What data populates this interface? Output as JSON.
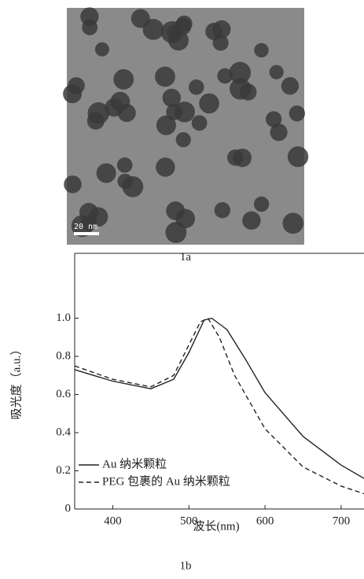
{
  "panel_a": {
    "scale_bar": "20 nm",
    "caption": "1a"
  },
  "chart_data": {
    "type": "line",
    "caption": "1b",
    "x_label": "波长(nm)",
    "y_label": "吸光度（a.u.）",
    "xlim": [
      350,
      730
    ],
    "ylim": [
      0,
      1.34
    ],
    "xticks": [
      400,
      500,
      600,
      700
    ],
    "yticks": [
      0,
      0.2,
      0.4,
      0.6,
      0.8,
      {
        "value": 1,
        "label": "1.0"
      }
    ],
    "series": [
      {
        "name": "Au 纳米颗粒",
        "color": "#222222",
        "dash": "solid",
        "x": [
          350,
          400,
          450,
          480,
          500,
          520,
          530,
          550,
          575,
          600,
          650,
          700,
          730
        ],
        "values": [
          0.73,
          0.67,
          0.63,
          0.68,
          0.82,
          0.99,
          1.0,
          0.94,
          0.78,
          0.61,
          0.38,
          0.23,
          0.16
        ]
      },
      {
        "name": "PEG 包裹的 Au 纳米颗粒",
        "color": "#222222",
        "dash": "dashed",
        "x": [
          350,
          400,
          450,
          480,
          500,
          515,
          525,
          540,
          560,
          600,
          650,
          700,
          730
        ],
        "values": [
          0.75,
          0.68,
          0.64,
          0.7,
          0.86,
          0.98,
          1.0,
          0.9,
          0.7,
          0.42,
          0.22,
          0.12,
          0.08
        ]
      }
    ]
  }
}
